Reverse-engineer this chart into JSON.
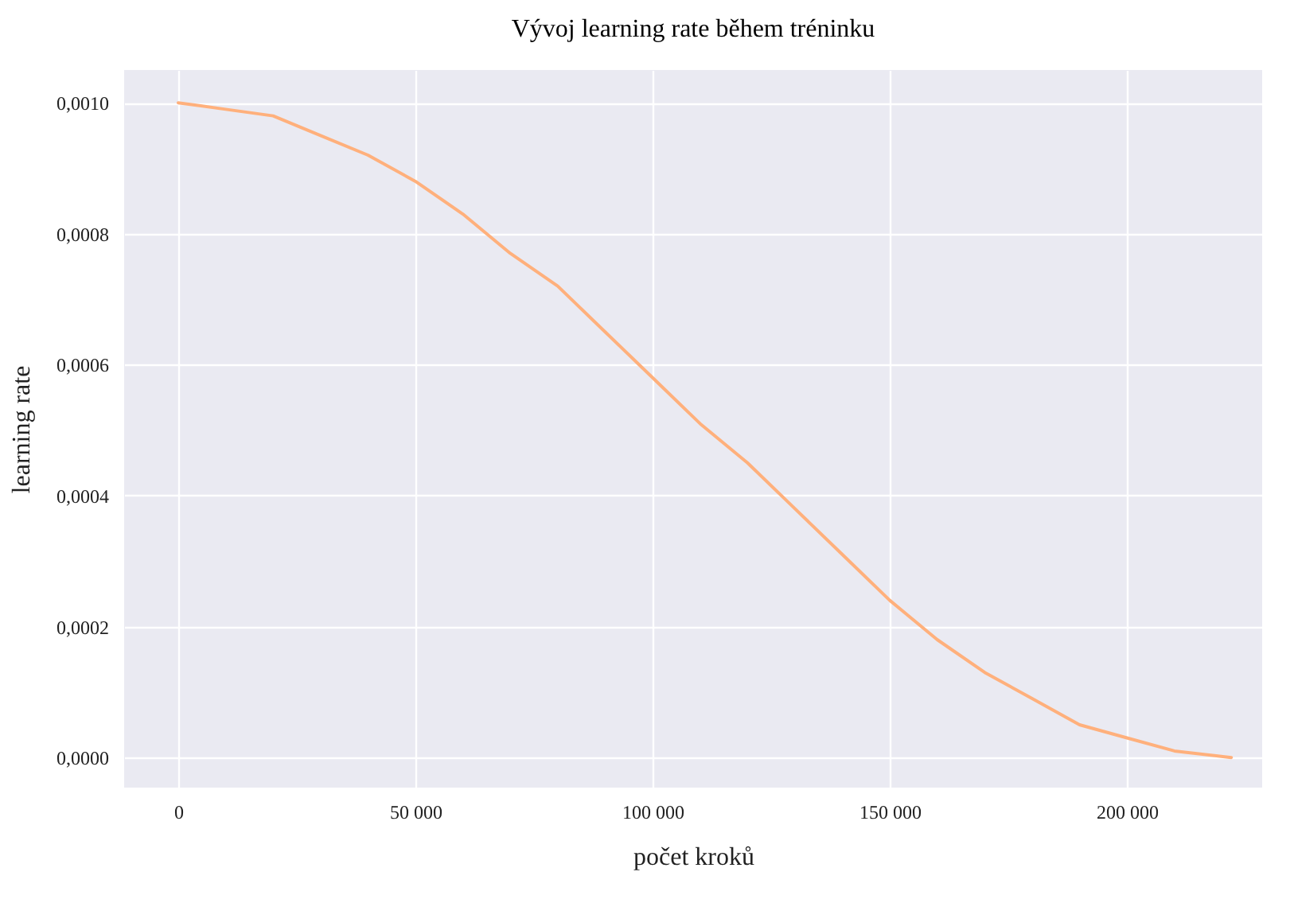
{
  "chart_data": {
    "type": "line",
    "title": "Vývoj learning rate během tréninku",
    "xlabel": "počet kroků",
    "ylabel": "learning rate",
    "x": [
      0,
      10000,
      20000,
      30000,
      40000,
      50000,
      60000,
      70000,
      80000,
      90000,
      100000,
      110000,
      120000,
      130000,
      140000,
      150000,
      160000,
      170000,
      180000,
      190000,
      200000,
      210000,
      222000
    ],
    "series": [
      {
        "color": "#ffb07c",
        "values": [
          0.001,
          0.00099,
          0.00098,
          0.00095,
          0.00092,
          0.00088,
          0.00083,
          0.00077,
          0.00072,
          0.00065,
          0.00058,
          0.00051,
          0.00045,
          0.00038,
          0.00031,
          0.00024,
          0.00018,
          0.00013,
          9e-05,
          5e-05,
          3e-05,
          1e-05,
          0.0
        ]
      }
    ],
    "xlim": [
      -11400,
      228500
    ],
    "ylim": [
      -4.6e-05,
      0.00105
    ],
    "xticks": [
      0,
      {
        "value": 50000,
        "label": "50 000"
      },
      {
        "value": 100000,
        "label": "100 000"
      },
      {
        "value": 150000,
        "label": "150 000"
      },
      {
        "value": 200000,
        "label": "200 000"
      }
    ],
    "yticks": [
      {
        "value": 0,
        "label": "0,0000"
      },
      {
        "value": 0.0002,
        "label": "0,0002"
      },
      {
        "value": 0.0004,
        "label": "0,0004"
      },
      {
        "value": 0.0006,
        "label": "0,0006"
      },
      {
        "value": 0.0008,
        "label": "0,0008"
      },
      {
        "value": 0.001,
        "label": "0,0010"
      }
    ],
    "grid": true,
    "marker": "none",
    "line_style": "solid"
  }
}
